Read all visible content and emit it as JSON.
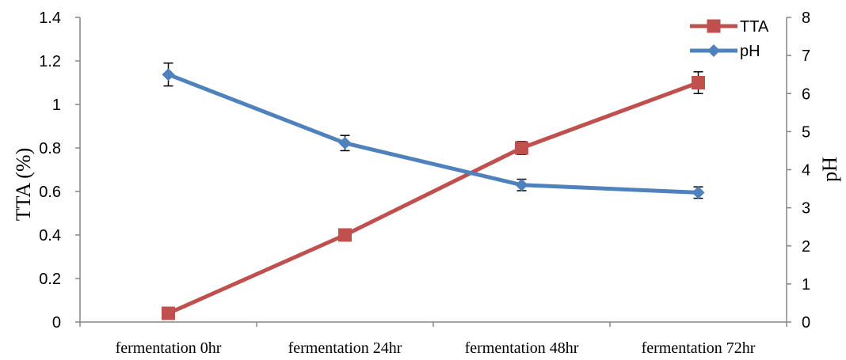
{
  "chart_data": {
    "type": "line",
    "categories": [
      "fermentation 0hr",
      "fermentation 24hr",
      "fermentation 48hr",
      "fermentation 72hr"
    ],
    "y_left": {
      "label": "TTA (%)",
      "ticks": [
        "0",
        "0.2",
        "0.4",
        "0.6",
        "0.8",
        "1",
        "1.2",
        "1.4"
      ],
      "ylim": [
        0,
        1.4
      ]
    },
    "y_right": {
      "label": "pH",
      "ticks": [
        "0",
        "1",
        "2",
        "3",
        "4",
        "5",
        "6",
        "7",
        "8"
      ],
      "ylim": [
        0,
        8
      ]
    },
    "series": [
      {
        "name": "TTA",
        "axis": "left",
        "color": "#c0504d",
        "marker": "square",
        "values": [
          0.04,
          0.4,
          0.8,
          1.1
        ],
        "errors": [
          0.0,
          0.0,
          0.03,
          0.05
        ]
      },
      {
        "name": "pH",
        "axis": "right",
        "color": "#4f81bd",
        "marker": "diamond",
        "values": [
          6.5,
          4.7,
          3.6,
          3.4
        ],
        "errors": [
          0.3,
          0.2,
          0.15,
          0.15
        ]
      }
    ],
    "legend_position": "top-right",
    "grid": false
  }
}
